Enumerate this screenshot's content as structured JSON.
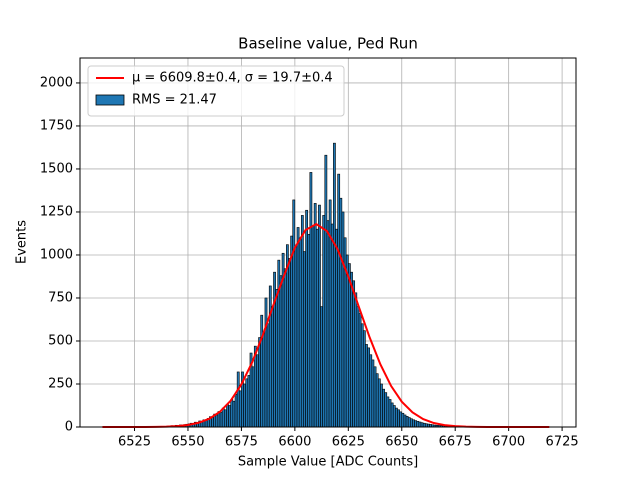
{
  "chart_data": {
    "type": "histogram",
    "title": "Baseline value, Ped Run",
    "xlabel": "Sample Value [ADC Counts]",
    "ylabel": "Events",
    "name": "RMS = 21.47",
    "color": "#1f77b4",
    "edgecolor": "#000000",
    "bins": [
      6540,
      6541,
      6542,
      6543,
      6544,
      6545,
      6546,
      6547,
      6548,
      6549,
      6550,
      6551,
      6552,
      6553,
      6554,
      6555,
      6556,
      6557,
      6558,
      6559,
      6560,
      6561,
      6562,
      6563,
      6564,
      6565,
      6566,
      6567,
      6568,
      6569,
      6570,
      6571,
      6572,
      6573,
      6574,
      6575,
      6576,
      6577,
      6578,
      6579,
      6580,
      6581,
      6582,
      6583,
      6584,
      6585,
      6586,
      6587,
      6588,
      6589,
      6590,
      6591,
      6592,
      6593,
      6594,
      6595,
      6596,
      6597,
      6598,
      6599,
      6600,
      6601,
      6602,
      6603,
      6604,
      6605,
      6606,
      6607,
      6608,
      6609,
      6610,
      6611,
      6612,
      6613,
      6614,
      6615,
      6616,
      6617,
      6618,
      6619,
      6620,
      6621,
      6622,
      6623,
      6624,
      6625,
      6626,
      6627,
      6628,
      6629,
      6630,
      6631,
      6632,
      6633,
      6634,
      6635,
      6636,
      6637,
      6638,
      6639,
      6640,
      6641,
      6642,
      6643,
      6644,
      6645,
      6646,
      6647,
      6648,
      6649,
      6650,
      6651,
      6652,
      6653,
      6654,
      6655,
      6656,
      6657,
      6658,
      6659,
      6660,
      6661,
      6662,
      6663,
      6664,
      6665,
      6666,
      6667,
      6668,
      6669,
      6670,
      6671,
      6672,
      6673,
      6674,
      6675,
      6676,
      6677,
      6678,
      6679,
      6680,
      6681,
      6682,
      6683,
      6684,
      6685,
      6686,
      6687,
      6688,
      6689,
      6690
    ],
    "counts": [
      5,
      6,
      8,
      7,
      10,
      9,
      12,
      11,
      14,
      16,
      18,
      22,
      20,
      28,
      25,
      35,
      30,
      42,
      38,
      50,
      60,
      55,
      75,
      70,
      90,
      85,
      110,
      100,
      130,
      125,
      160,
      150,
      190,
      320,
      210,
      320,
      250,
      280,
      300,
      430,
      350,
      470,
      420,
      520,
      650,
      550,
      750,
      600,
      820,
      700,
      900,
      800,
      970,
      880,
      1010,
      920,
      1060,
      980,
      1110,
      1320,
      1050,
      1160,
      1100,
      1230,
      1020,
      1260,
      1120,
      1480,
      1170,
      1300,
      1150,
      1290,
      700,
      1230,
      1580,
      1200,
      1320,
      1180,
      1650,
      1150,
      1470,
      1330,
      1250,
      1100,
      1000,
      950,
      900,
      850,
      780,
      700,
      660,
      600,
      560,
      480,
      460,
      420,
      390,
      350,
      310,
      280,
      250,
      220,
      200,
      175,
      160,
      140,
      125,
      110,
      100,
      88,
      80,
      70,
      62,
      55,
      48,
      42,
      37,
      33,
      29,
      25,
      22,
      19,
      17,
      15,
      13,
      11,
      10,
      9,
      8,
      7,
      6,
      5,
      5,
      4,
      4,
      3,
      3,
      2,
      2,
      2,
      2,
      1,
      1,
      1,
      1,
      1,
      0,
      1,
      0,
      0
    ],
    "fit": {
      "name": "μ = 6609.8±0.4, σ = 19.7±0.4",
      "color": "#ff0000",
      "x": [
        6510,
        6515,
        6520,
        6525,
        6530,
        6535,
        6540,
        6545,
        6550,
        6555,
        6560,
        6565,
        6570,
        6575,
        6580,
        6585,
        6590,
        6595,
        6600,
        6605,
        6610,
        6615,
        6620,
        6625,
        6630,
        6635,
        6640,
        6645,
        6650,
        6655,
        6660,
        6665,
        6670,
        6675,
        6680,
        6685,
        6690,
        6695,
        6700,
        6705,
        6710,
        6715,
        6719
      ],
      "values": [
        0,
        0,
        0,
        0.1,
        0.3,
        0.9,
        2.2,
        5.3,
        11.8,
        24.6,
        48.3,
        88.8,
        153,
        248,
        375,
        534,
        711,
        882,
        1042,
        1145,
        1180,
        1139,
        1033,
        875,
        696,
        520,
        364,
        239,
        147,
        85,
        46,
        23,
        11,
        4.9,
        2.1,
        0.8,
        0.3,
        0.1,
        0,
        0,
        0,
        0,
        0
      ]
    },
    "xlim": [
      6499.5,
      6731.5
    ],
    "ylim": [
      0,
      2145
    ],
    "xticks": [
      6525,
      6550,
      6575,
      6600,
      6625,
      6650,
      6675,
      6700,
      6725
    ],
    "yticks": [
      0,
      250,
      500,
      750,
      1000,
      1250,
      1500,
      1750,
      2000
    ],
    "grid": true,
    "legend": "upper left"
  }
}
